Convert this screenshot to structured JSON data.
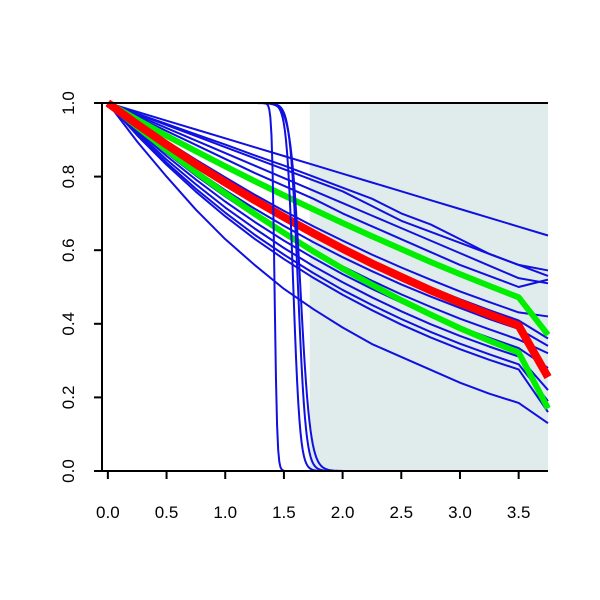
{
  "chart_data": {
    "type": "line",
    "title": "",
    "xlabel": "",
    "ylabel": "",
    "xlim": [
      -0.05,
      3.75
    ],
    "ylim": [
      0.0,
      1.0
    ],
    "x_ticks": [
      "0.0",
      "0.5",
      "1.0",
      "1.5",
      "2.0",
      "2.5",
      "3.0",
      "3.5"
    ],
    "y_ticks": [
      "0.0",
      "0.2",
      "0.4",
      "0.6",
      "0.8",
      "1.0"
    ],
    "grid": false,
    "legend": "none",
    "shaded_region": {
      "x_from": 1.72,
      "x_to": 3.75,
      "color": "#e0ecec"
    },
    "colors": {
      "blue": "#1010e0",
      "red": "#ff0000",
      "green": "#00ee00",
      "shade": "#e0ecec",
      "axis": "#000000"
    },
    "line_x": [
      0.0,
      0.25,
      0.5,
      0.75,
      1.0,
      1.25,
      1.5,
      1.75,
      2.0,
      2.25,
      2.5,
      2.75,
      3.0,
      3.25,
      3.5,
      3.75
    ],
    "series": [
      {
        "color": "blue",
        "width": 2,
        "y": [
          1.0,
          0.976,
          0.952,
          0.928,
          0.904,
          0.88,
          0.856,
          0.832,
          0.808,
          0.784,
          0.76,
          0.736,
          0.712,
          0.688,
          0.664,
          0.64
        ]
      },
      {
        "color": "blue",
        "width": 2,
        "y": [
          1.0,
          0.97,
          0.94,
          0.91,
          0.88,
          0.85,
          0.82,
          0.79,
          0.76,
          0.72,
          0.68,
          0.65,
          0.62,
          0.59,
          0.56,
          0.53
        ]
      },
      {
        "color": "blue",
        "width": 2,
        "y": [
          1.0,
          0.966,
          0.932,
          0.898,
          0.864,
          0.83,
          0.796,
          0.762,
          0.728,
          0.694,
          0.66,
          0.626,
          0.592,
          0.558,
          0.524,
          0.51
        ]
      },
      {
        "color": "blue",
        "width": 2,
        "y": [
          1.0,
          0.971,
          0.943,
          0.915,
          0.887,
          0.858,
          0.83,
          0.8,
          0.77,
          0.74,
          0.7,
          0.67,
          0.63,
          0.59,
          0.56,
          0.545
        ]
      },
      {
        "color": "blue",
        "width": 2,
        "y": [
          1.0,
          0.962,
          0.924,
          0.886,
          0.848,
          0.81,
          0.775,
          0.74,
          0.7,
          0.665,
          0.63,
          0.595,
          0.56,
          0.53,
          0.5,
          0.52
        ]
      },
      {
        "color": "blue",
        "width": 2,
        "y": [
          1.0,
          0.948,
          0.896,
          0.846,
          0.798,
          0.751,
          0.707,
          0.665,
          0.626,
          0.588,
          0.553,
          0.52,
          0.488,
          0.459,
          0.431,
          0.42
        ]
      },
      {
        "color": "blue",
        "width": 2,
        "y": [
          1.0,
          0.94,
          0.885,
          0.832,
          0.782,
          0.735,
          0.69,
          0.647,
          0.607,
          0.569,
          0.533,
          0.499,
          0.467,
          0.437,
          0.409,
          0.36
        ]
      },
      {
        "color": "blue",
        "width": 2,
        "y": [
          1.0,
          0.935,
          0.874,
          0.817,
          0.763,
          0.713,
          0.666,
          0.622,
          0.581,
          0.543,
          0.507,
          0.474,
          0.443,
          0.413,
          0.386,
          0.34
        ]
      },
      {
        "color": "blue",
        "width": 2,
        "y": [
          1.0,
          0.93,
          0.864,
          0.803,
          0.746,
          0.693,
          0.644,
          0.598,
          0.556,
          0.517,
          0.48,
          0.446,
          0.414,
          0.385,
          0.357,
          0.32
        ]
      },
      {
        "color": "blue",
        "width": 2,
        "y": [
          1.0,
          0.925,
          0.856,
          0.792,
          0.732,
          0.677,
          0.626,
          0.579,
          0.535,
          0.495,
          0.458,
          0.423,
          0.391,
          0.362,
          0.334,
          0.28
        ]
      },
      {
        "color": "blue",
        "width": 2,
        "y": [
          1.0,
          0.92,
          0.846,
          0.779,
          0.716,
          0.659,
          0.606,
          0.557,
          0.513,
          0.472,
          0.434,
          0.399,
          0.367,
          0.338,
          0.311,
          0.22
        ]
      },
      {
        "color": "blue",
        "width": 2,
        "y": [
          1.0,
          0.915,
          0.838,
          0.767,
          0.702,
          0.642,
          0.588,
          0.538,
          0.492,
          0.451,
          0.413,
          0.378,
          0.346,
          0.317,
          0.29,
          0.19
        ]
      },
      {
        "color": "blue",
        "width": 2,
        "y": [
          1.0,
          0.912,
          0.832,
          0.759,
          0.692,
          0.631,
          0.576,
          0.525,
          0.479,
          0.437,
          0.398,
          0.363,
          0.331,
          0.302,
          0.276,
          0.16
        ]
      },
      {
        "color": "blue",
        "width": 2,
        "y": [
          1.0,
          0.895,
          0.8,
          0.71,
          0.63,
          0.56,
          0.495,
          0.44,
          0.39,
          0.345,
          0.31,
          0.275,
          0.24,
          0.21,
          0.185,
          0.13
        ]
      },
      {
        "color": "green",
        "width": 6,
        "y": [
          1.0,
          0.955,
          0.911,
          0.869,
          0.828,
          0.788,
          0.749,
          0.711,
          0.674,
          0.638,
          0.603,
          0.568,
          0.535,
          0.503,
          0.472,
          0.37
        ]
      },
      {
        "color": "green",
        "width": 6,
        "y": [
          1.0,
          0.935,
          0.872,
          0.812,
          0.754,
          0.699,
          0.647,
          0.597,
          0.55,
          0.506,
          0.464,
          0.425,
          0.388,
          0.354,
          0.322,
          0.17
        ]
      },
      {
        "color": "red",
        "width": 8,
        "y": [
          1.0,
          0.942,
          0.887,
          0.834,
          0.784,
          0.736,
          0.69,
          0.646,
          0.604,
          0.564,
          0.527,
          0.491,
          0.457,
          0.425,
          0.395,
          0.255
        ]
      }
    ],
    "steep_curves": [
      {
        "color": "blue",
        "width": 2,
        "x0": 1.42,
        "k": 90
      },
      {
        "color": "blue",
        "width": 2,
        "x0": 1.58,
        "k": 35
      },
      {
        "color": "blue",
        "width": 2,
        "x0": 1.62,
        "k": 30
      },
      {
        "color": "blue",
        "width": 2,
        "x0": 1.64,
        "k": 24
      }
    ]
  }
}
